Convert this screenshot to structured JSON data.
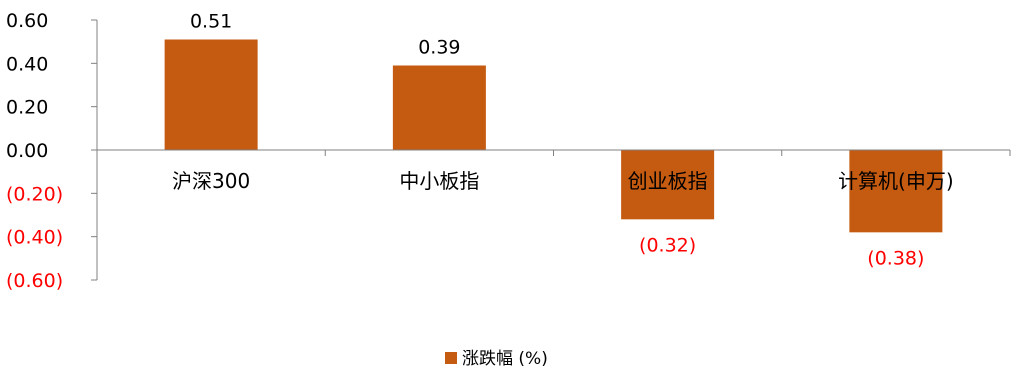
{
  "chart_data": {
    "type": "bar",
    "categories": [
      "沪深300",
      "中小板指",
      "创业板指",
      "计算机(申万)"
    ],
    "series": [
      {
        "name": "涨跌幅 (%)",
        "values": [
          0.51,
          0.39,
          -0.32,
          -0.38
        ]
      }
    ],
    "data_labels": [
      "0.51",
      "0.39",
      "(0.32)",
      "(0.38)"
    ],
    "y_ticks": [
      0.6,
      0.4,
      0.2,
      0.0,
      -0.2,
      -0.4,
      -0.6
    ],
    "y_tick_labels": [
      "0.60",
      "0.40",
      "0.20",
      "0.00",
      "(0.20)",
      "(0.40)",
      "(0.60)"
    ],
    "ylim": [
      -0.6,
      0.6
    ],
    "title": "",
    "xlabel": "",
    "ylabel": "",
    "legend_position": "bottom-center",
    "grid": false,
    "colors": {
      "bar": "#C55A11",
      "negative_text": "#FF0000",
      "positive_text": "#000000",
      "axis": "#808080"
    }
  }
}
